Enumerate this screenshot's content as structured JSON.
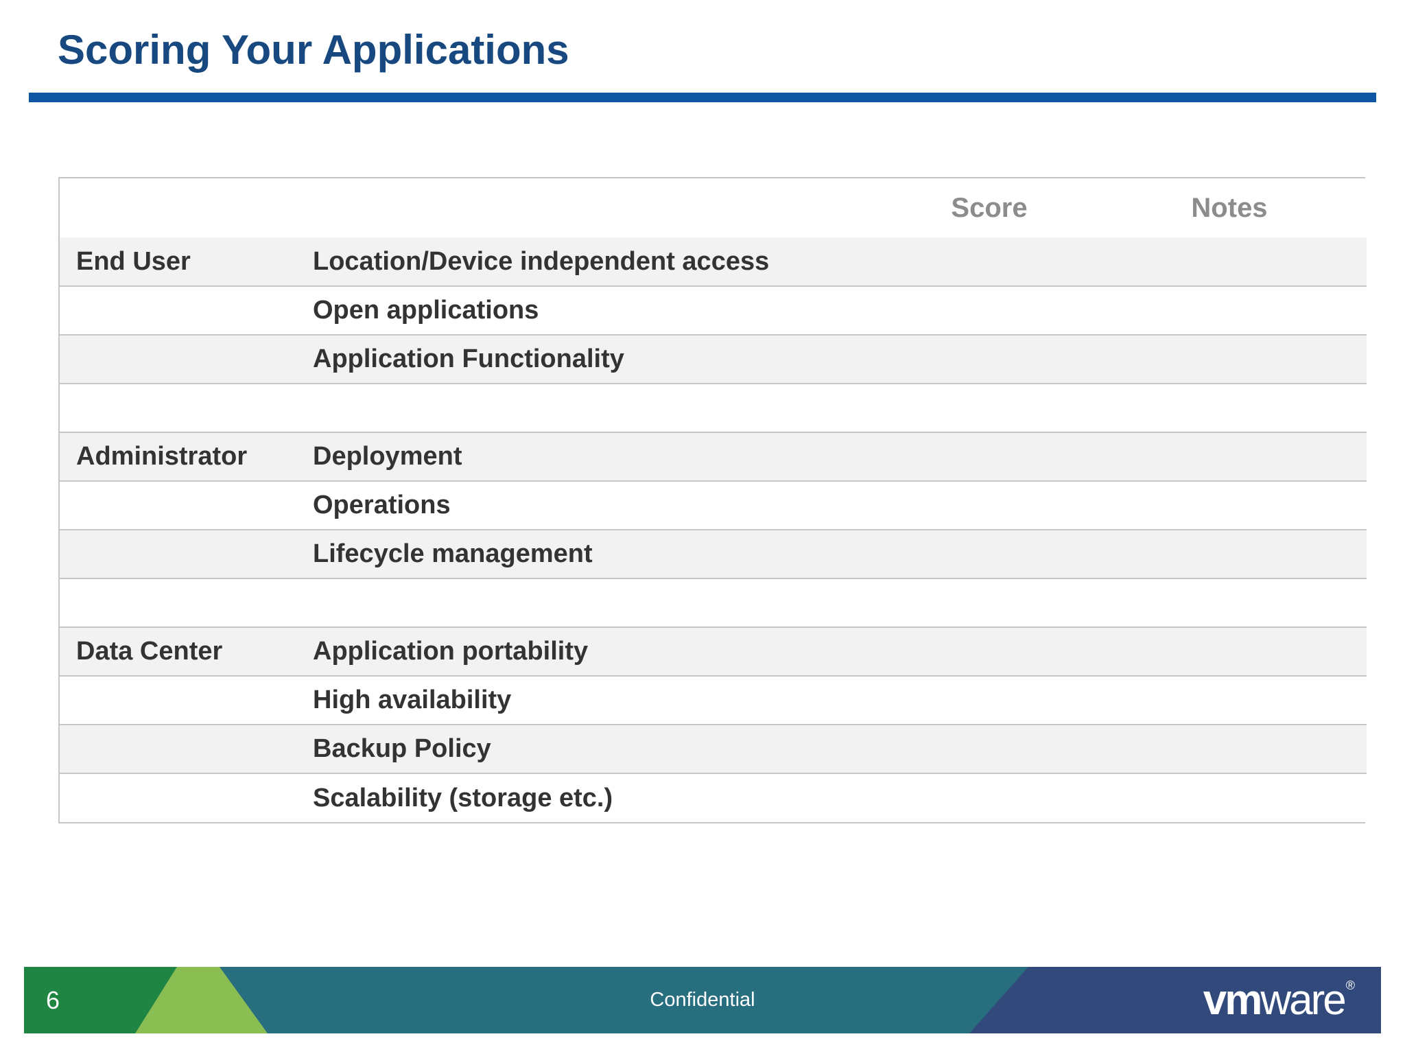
{
  "slide": {
    "title": "Scoring Your Applications",
    "page_number": "6",
    "footer_label": "Confidential",
    "brand": {
      "logo_bold": "vm",
      "logo_light": "ware",
      "registered_mark": "®"
    }
  },
  "table": {
    "headers": {
      "category": "",
      "criterion": "",
      "score": "Score",
      "notes": "Notes"
    },
    "rows": [
      {
        "category": "End User",
        "criterion": "Location/Device independent access",
        "score": "",
        "notes": "",
        "shaded": true,
        "spacer": false
      },
      {
        "category": "",
        "criterion": "Open applications",
        "score": "",
        "notes": "",
        "shaded": false,
        "spacer": false
      },
      {
        "category": "",
        "criterion": "Application Functionality",
        "score": "",
        "notes": "",
        "shaded": true,
        "spacer": false
      },
      {
        "category": "",
        "criterion": "",
        "score": "",
        "notes": "",
        "shaded": false,
        "spacer": true
      },
      {
        "category": "Administrator",
        "criterion": "Deployment",
        "score": "",
        "notes": "",
        "shaded": true,
        "spacer": false
      },
      {
        "category": "",
        "criterion": "Operations",
        "score": "",
        "notes": "",
        "shaded": false,
        "spacer": false
      },
      {
        "category": "",
        "criterion": "Lifecycle management",
        "score": "",
        "notes": "",
        "shaded": true,
        "spacer": false
      },
      {
        "category": "",
        "criterion": "",
        "score": "",
        "notes": "",
        "shaded": false,
        "spacer": true
      },
      {
        "category": "Data Center",
        "criterion": "Application portability",
        "score": "",
        "notes": "",
        "shaded": true,
        "spacer": false
      },
      {
        "category": "",
        "criterion": "High availability",
        "score": "",
        "notes": "",
        "shaded": false,
        "spacer": false
      },
      {
        "category": "",
        "criterion": "Backup Policy",
        "score": "",
        "notes": "",
        "shaded": true,
        "spacer": false
      },
      {
        "category": "",
        "criterion": "Scalability (storage etc.)",
        "score": "",
        "notes": "",
        "shaded": false,
        "spacer": false
      }
    ]
  },
  "colors": {
    "title_blue": "#17487F",
    "rule_blue": "#0F57A3",
    "header_gray": "#8C8C8C",
    "table_text": "#333333",
    "row_shade": "#F2F2F2",
    "table_border": "#C6C6C6",
    "footer_dark_green": "#1E8642",
    "footer_light_green": "#8BBE52",
    "footer_teal": "#276E7E",
    "footer_navy": "#31497B",
    "footer_text": "#FFFFFF"
  }
}
